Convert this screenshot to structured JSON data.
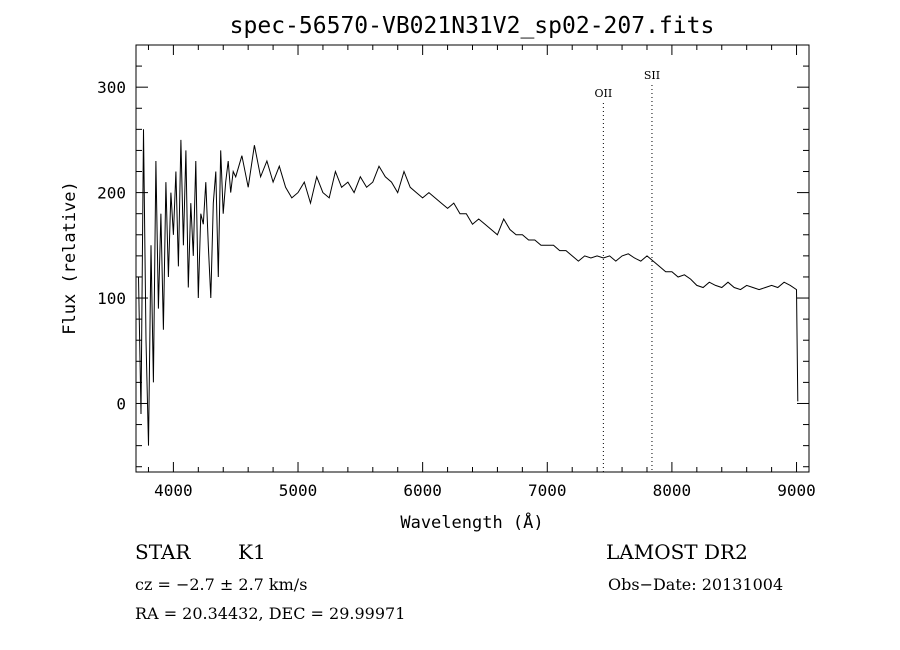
{
  "chart_data": {
    "type": "line",
    "title": "spec-56570-VB021N31V2_sp02-207.fits",
    "xlabel": "Wavelength (Å)",
    "ylabel": "Flux (relative)",
    "xlim": [
      3700,
      9100
    ],
    "ylim": [
      -65,
      340
    ],
    "x_ticks": [
      4000,
      5000,
      6000,
      7000,
      8000,
      9000
    ],
    "y_ticks": [
      0,
      100,
      200,
      300
    ],
    "grid": false,
    "series": [
      {
        "x": [
          3720,
          3740,
          3760,
          3780,
          3800,
          3820,
          3840,
          3860,
          3880,
          3900,
          3920,
          3940,
          3960,
          3980,
          4000,
          4020,
          4040,
          4060,
          4080,
          4100,
          4120,
          4140,
          4160,
          4180,
          4200,
          4220,
          4240,
          4260,
          4280,
          4300,
          4320,
          4340,
          4360,
          4380,
          4400,
          4420,
          4440,
          4460,
          4480,
          4500,
          4550,
          4600,
          4650,
          4700,
          4750,
          4800,
          4850,
          4900,
          4950,
          5000,
          5050,
          5100,
          5150,
          5200,
          5250,
          5300,
          5350,
          5400,
          5450,
          5500,
          5550,
          5600,
          5650,
          5700,
          5750,
          5800,
          5850,
          5900,
          5950,
          6000,
          6050,
          6100,
          6150,
          6200,
          6250,
          6300,
          6350,
          6400,
          6450,
          6500,
          6550,
          6600,
          6650,
          6700,
          6750,
          6800,
          6850,
          6900,
          6950,
          7000,
          7050,
          7100,
          7150,
          7200,
          7250,
          7300,
          7350,
          7400,
          7450,
          7500,
          7550,
          7600,
          7650,
          7700,
          7750,
          7800,
          7850,
          7900,
          7950,
          8000,
          8050,
          8100,
          8150,
          8200,
          8250,
          8300,
          8350,
          8400,
          8450,
          8500,
          8550,
          8600,
          8650,
          8700,
          8750,
          8800,
          8850,
          8900,
          8950,
          9000,
          9010
        ],
        "values": [
          120,
          -10,
          260,
          60,
          -40,
          150,
          20,
          230,
          90,
          180,
          70,
          210,
          120,
          200,
          160,
          220,
          130,
          250,
          150,
          240,
          110,
          190,
          140,
          230,
          100,
          180,
          170,
          210,
          150,
          100,
          190,
          220,
          120,
          240,
          180,
          210,
          230,
          200,
          220,
          215,
          235,
          205,
          245,
          215,
          230,
          210,
          225,
          205,
          195,
          200,
          210,
          190,
          215,
          200,
          195,
          220,
          205,
          210,
          200,
          215,
          205,
          210,
          225,
          215,
          210,
          200,
          220,
          205,
          200,
          195,
          200,
          195,
          190,
          185,
          190,
          180,
          180,
          170,
          175,
          170,
          165,
          160,
          175,
          165,
          160,
          160,
          155,
          155,
          150,
          150,
          150,
          145,
          145,
          140,
          135,
          140,
          138,
          140,
          138,
          140,
          135,
          140,
          142,
          138,
          135,
          140,
          135,
          130,
          125,
          125,
          120,
          122,
          118,
          112,
          110,
          115,
          112,
          110,
          115,
          110,
          108,
          112,
          110,
          108,
          110,
          112,
          110,
          115,
          112,
          108,
          2
        ]
      }
    ],
    "annotations": [
      {
        "label": "OII",
        "x": 7450
      },
      {
        "label": "SII",
        "x": 7840
      }
    ]
  },
  "info": {
    "object_class": "STAR",
    "subclass": "K1",
    "survey": "LAMOST DR2",
    "cz": "cz = −2.7 ± 2.7 km/s",
    "obs_date": "Obs−Date: 20131004",
    "coords": "RA =  20.34432, DEC =  29.99971"
  }
}
